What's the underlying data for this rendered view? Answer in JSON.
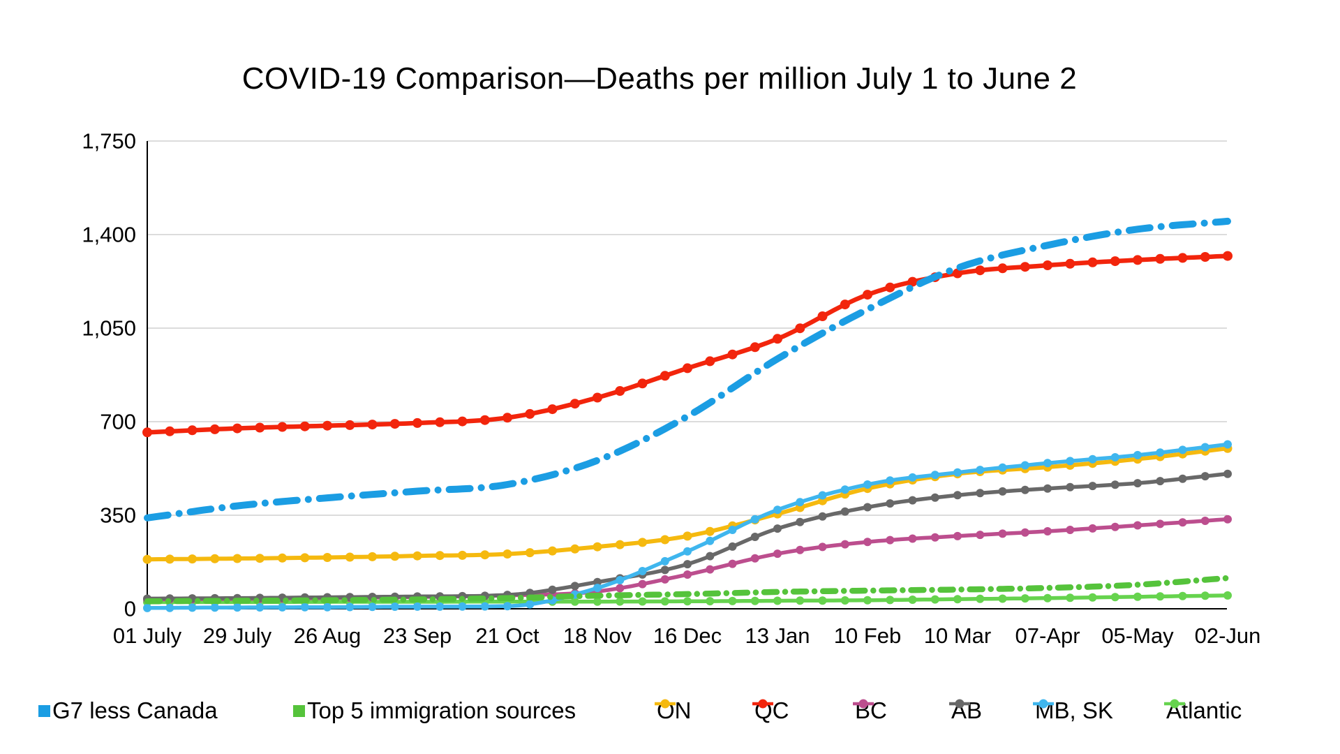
{
  "title": "COVID-19 Comparison—Deaths per million July 1 to June 2",
  "chart_data": {
    "type": "line",
    "title": "COVID-19 Comparison—Deaths per million July 1 to June 2",
    "x_tick_labels": [
      "01 July",
      "29 July",
      "26 Aug",
      "23 Sep",
      "21 Oct",
      "18 Nov",
      "16 Dec",
      "13 Jan",
      "10 Feb",
      "10 Mar",
      "07-Apr",
      "05-May",
      "02-Jun"
    ],
    "y_ticks": [
      0,
      350,
      700,
      1050,
      1400,
      1750
    ],
    "y_tick_labels": [
      "0",
      "350",
      "700",
      "1,050",
      "1,400",
      "1,750"
    ],
    "ylim": [
      0,
      1750
    ],
    "grid": "horizontal",
    "grid_color": "#c8c8c8",
    "axis_color": "#000000",
    "text_color": "#000000",
    "background": "#ffffff",
    "legend_position": "bottom",
    "series": [
      {
        "name": "G7 less Canada",
        "color": "#1b9de3",
        "style": "dash-dot",
        "markers": false,
        "values": [
          340,
          385,
          415,
          440,
          465,
          555,
          720,
          935,
          1120,
          1275,
          1360,
          1420,
          1450
        ]
      },
      {
        "name": "Top 5 immigration sources",
        "color": "#55c33b",
        "style": "dash-dot",
        "markers": false,
        "values": [
          28,
          30,
          32,
          35,
          40,
          49,
          55,
          63,
          68,
          72,
          78,
          90,
          115
        ]
      },
      {
        "name": "ON",
        "color": "#f5b90f",
        "style": "solid",
        "markers": true,
        "values": [
          185,
          188,
          192,
          198,
          205,
          232,
          272,
          355,
          450,
          505,
          530,
          560,
          600
        ]
      },
      {
        "name": "QC",
        "color": "#f2250c",
        "style": "solid",
        "markers": true,
        "values": [
          660,
          675,
          685,
          695,
          715,
          790,
          900,
          1010,
          1175,
          1255,
          1285,
          1305,
          1320
        ]
      },
      {
        "name": "BC",
        "color": "#bc4e8e",
        "style": "solid",
        "markers": true,
        "values": [
          35,
          37,
          40,
          44,
          50,
          65,
          128,
          206,
          250,
          272,
          290,
          312,
          335
        ]
      },
      {
        "name": "AB",
        "color": "#686868",
        "style": "solid",
        "markers": true,
        "values": [
          38,
          40,
          43,
          46,
          52,
          100,
          167,
          300,
          380,
          425,
          450,
          470,
          505
        ]
      },
      {
        "name": "MB, SK",
        "color": "#3fb6ee",
        "style": "solid",
        "markers": true,
        "values": [
          3,
          5,
          6,
          8,
          10,
          78,
          215,
          370,
          465,
          510,
          545,
          575,
          615
        ]
      },
      {
        "name": "Atlantic",
        "color": "#66d34e",
        "style": "solid",
        "markers": true,
        "values": [
          25,
          25,
          26,
          26,
          27,
          27,
          28,
          30,
          32,
          36,
          40,
          45,
          50
        ]
      }
    ]
  }
}
